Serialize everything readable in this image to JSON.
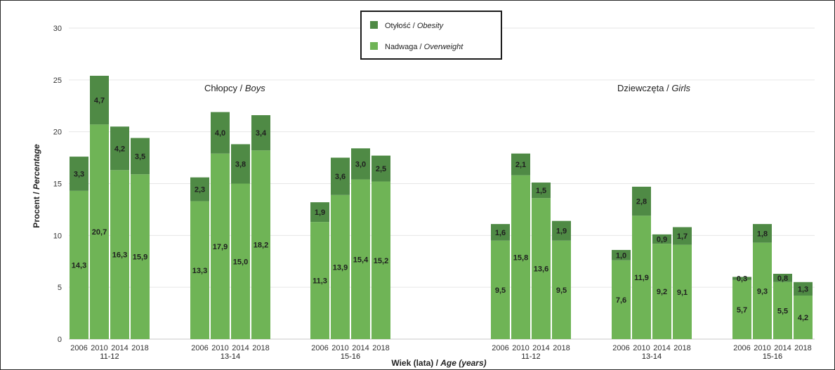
{
  "chart_data": {
    "type": "bar",
    "stacked": true,
    "ylim": [
      0,
      30
    ],
    "yticks": [
      0,
      5,
      10,
      15,
      20,
      25,
      30
    ],
    "grid": true,
    "legend_position": "top-center",
    "xlabel": {
      "main": "Wiek (lata) / ",
      "italic": "Age (years)"
    },
    "ylabel": {
      "main": "Procent / ",
      "italic": "Percentage"
    },
    "colors": {
      "obesity": "#4f8a45",
      "overweight": "#6fb456"
    },
    "series": [
      {
        "key": "obesity",
        "name": "Otyłość / ",
        "name_italic": "Obesity"
      },
      {
        "key": "overweight",
        "name": "Nadwaga / ",
        "name_italic": "Overweight"
      }
    ],
    "sections": [
      {
        "key": "boys",
        "label": "Chłopcy / ",
        "label_italic": "Boys"
      },
      {
        "key": "girls",
        "label": "Dziewczęta / ",
        "label_italic": "Girls"
      }
    ],
    "groups": [
      {
        "section": "boys",
        "age": "11-12",
        "years": [
          "2006",
          "2010",
          "2014",
          "2018"
        ],
        "overweight": [
          14.3,
          20.7,
          16.3,
          15.9
        ],
        "obesity": [
          3.3,
          4.7,
          4.2,
          3.5
        ],
        "overweight_labels": [
          "14,3",
          "20,7",
          "16,3",
          "15,9"
        ],
        "obesity_labels": [
          "3,3",
          "4,7",
          "4,2",
          "3,5"
        ]
      },
      {
        "section": "boys",
        "age": "13-14",
        "years": [
          "2006",
          "2010",
          "2014",
          "2018"
        ],
        "overweight": [
          13.3,
          17.9,
          15.0,
          18.2
        ],
        "obesity": [
          2.3,
          4.0,
          3.8,
          3.4
        ],
        "overweight_labels": [
          "13,3",
          "17,9",
          "15,0",
          "18,2"
        ],
        "obesity_labels": [
          "2,3",
          "4,0",
          "3,8",
          "3,4"
        ]
      },
      {
        "section": "boys",
        "age": "15-16",
        "years": [
          "2006",
          "2010",
          "2014",
          "2018"
        ],
        "overweight": [
          11.3,
          13.9,
          15.4,
          15.2
        ],
        "obesity": [
          1.9,
          3.6,
          3.0,
          2.5
        ],
        "overweight_labels": [
          "11,3",
          "13,9",
          "15,4",
          "15,2"
        ],
        "obesity_labels": [
          "1,9",
          "3,6",
          "3,0",
          "2,5"
        ]
      },
      {
        "section": "girls",
        "age": "11-12",
        "years": [
          "2006",
          "2010",
          "2014",
          "2018"
        ],
        "overweight": [
          9.5,
          15.8,
          13.6,
          9.5
        ],
        "obesity": [
          1.6,
          2.1,
          1.5,
          1.9
        ],
        "overweight_labels": [
          "9,5",
          "15,8",
          "13,6",
          "9,5"
        ],
        "obesity_labels": [
          "1,6",
          "2,1",
          "1,5",
          "1,9"
        ]
      },
      {
        "section": "girls",
        "age": "13-14",
        "years": [
          "2006",
          "2010",
          "2014",
          "2018"
        ],
        "overweight": [
          7.6,
          11.9,
          9.2,
          9.1
        ],
        "obesity": [
          1.0,
          2.8,
          0.9,
          1.7
        ],
        "overweight_labels": [
          "7,6",
          "11,9",
          "9,2",
          "9,1"
        ],
        "obesity_labels": [
          "1,0",
          "2,8",
          "0,9",
          "1,7"
        ]
      },
      {
        "section": "girls",
        "age": "15-16",
        "years": [
          "2006",
          "2010",
          "2014",
          "2018"
        ],
        "overweight": [
          5.7,
          9.3,
          5.5,
          4.2
        ],
        "obesity": [
          0.3,
          1.8,
          0.8,
          1.3
        ],
        "overweight_labels": [
          "5,7",
          "9,3",
          "5,5",
          "4,2"
        ],
        "obesity_labels": [
          "0,3",
          "1,8",
          "0,8",
          "1,3"
        ]
      }
    ]
  }
}
